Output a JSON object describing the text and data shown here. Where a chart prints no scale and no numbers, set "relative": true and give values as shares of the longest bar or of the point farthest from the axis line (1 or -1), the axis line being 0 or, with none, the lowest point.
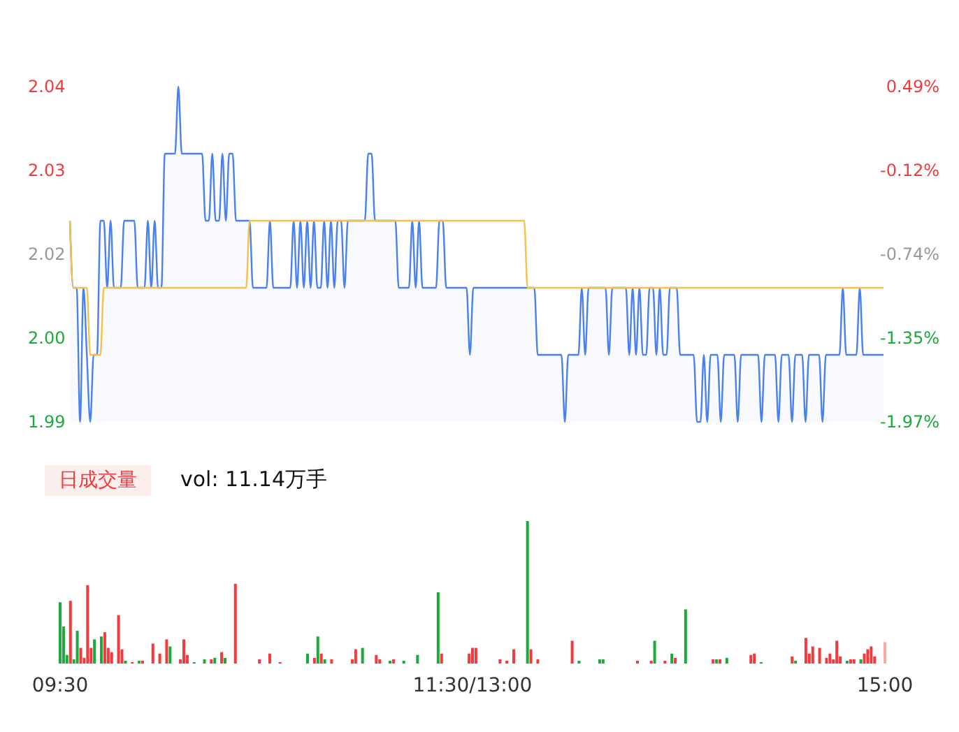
{
  "chart_data": [
    {
      "type": "line",
      "ylim": [
        1.99,
        2.04
      ],
      "categories": [
        null,
        null,
        null,
        null,
        null,
        null,
        null,
        null,
        null,
        null,
        null,
        null,
        null,
        null,
        null,
        null,
        null,
        null,
        null,
        null,
        null,
        null,
        null,
        null,
        null,
        null,
        null,
        null,
        null,
        null,
        null,
        null,
        null,
        null,
        null,
        null,
        null,
        null,
        null,
        null,
        null,
        null,
        null,
        null,
        null,
        null,
        null,
        null,
        null,
        null,
        null,
        null,
        null,
        null,
        null,
        null,
        null,
        null,
        null,
        null,
        null,
        null,
        null,
        null,
        null,
        null,
        null,
        null,
        null,
        null,
        null,
        null,
        null,
        null,
        null,
        null,
        null,
        null,
        null,
        null,
        null,
        null,
        null,
        null,
        null,
        null,
        null,
        null,
        null,
        null,
        null,
        null,
        null,
        null,
        null,
        null,
        null,
        null,
        null,
        null,
        null,
        null,
        null,
        null,
        null,
        null,
        null,
        null,
        null,
        null,
        null,
        null,
        null,
        null,
        null,
        null,
        null,
        null,
        null,
        null,
        null,
        null,
        null,
        null,
        null,
        null,
        null,
        null,
        null,
        null,
        null,
        null,
        null,
        null,
        null,
        null,
        null,
        null,
        null,
        null,
        null,
        null,
        null,
        null,
        null,
        null,
        null,
        null,
        null,
        null,
        null,
        null,
        null,
        null,
        null,
        null,
        null,
        null,
        null,
        null,
        null,
        null,
        null,
        null,
        null,
        null,
        null,
        null,
        null,
        null,
        null,
        null,
        null,
        null,
        null,
        null,
        null,
        null,
        null,
        null,
        null,
        null,
        null,
        null,
        null,
        null,
        null,
        null,
        null,
        null,
        null,
        null,
        null,
        null,
        null,
        null,
        null,
        null,
        null,
        null,
        null,
        null,
        null,
        null,
        null,
        null,
        null,
        null,
        null,
        null,
        null,
        null,
        null,
        null,
        null,
        null,
        null,
        null,
        null,
        null,
        null,
        null,
        null,
        null,
        null,
        null,
        null,
        null,
        null,
        null,
        null,
        null,
        null,
        null,
        null,
        null,
        null,
        null,
        null,
        null,
        null
      ],
      "yticks": [
        1.99,
        {
          "value": 2.0025,
          "label": "2.00"
        },
        {
          "value": 2.015,
          "label": "2.02"
        },
        {
          "value": 2.0275,
          "label": "2.03"
        },
        2.04
      ],
      "y2lim": [
        -1.97,
        0.49
      ],
      "y2ticks": [
        {
          "value": 0.49,
          "label": "0.49%"
        },
        {
          "value": -0.125,
          "label": "-0.12%"
        },
        {
          "value": -0.74,
          "label": "-0.74%"
        },
        {
          "value": -1.355,
          "label": "-1.35%"
        },
        {
          "value": -1.97,
          "label": "-1.97%"
        }
      ],
      "tick_labels": "y",
      "series": [
        {
          "type": "area",
          "color": "#4a80f0",
          "values": [
            2.02,
            2.01,
            2.01,
            1.99,
            2.01,
            2.0,
            1.99,
            2.0,
            2.0,
            2.02,
            2.02,
            2.01,
            2.02,
            2.01,
            2.01,
            2.01,
            2.02,
            2.02,
            2.02,
            2.02,
            2.01,
            2.01,
            2.01,
            2.02,
            2.01,
            2.02,
            2.01,
            2.01,
            2.03,
            2.03,
            2.03,
            2.03,
            2.04,
            2.03,
            2.03,
            2.03,
            2.03,
            2.03,
            2.03,
            2.03,
            2.02,
            2.02,
            2.03,
            2.02,
            2.02,
            2.03,
            2.02,
            2.03,
            2.03,
            2.02,
            2.02,
            2.02,
            2.02,
            2.02,
            2.01,
            2.01,
            2.01,
            2.01,
            2.01,
            2.02,
            2.01,
            2.01,
            2.01,
            2.01,
            2.01,
            2.01,
            2.02,
            2.01,
            2.02,
            2.01,
            2.02,
            2.01,
            2.02,
            2.01,
            2.01,
            2.02,
            2.01,
            2.02,
            2.01,
            2.02,
            2.02,
            2.01,
            2.02,
            2.02,
            2.02,
            2.02,
            2.02,
            2.02,
            2.03,
            2.03,
            2.02,
            2.02,
            2.02,
            2.02,
            2.02,
            2.02,
            2.02,
            2.01,
            2.01,
            2.01,
            2.01,
            2.02,
            2.01,
            2.02,
            2.01,
            2.01,
            2.01,
            2.01,
            2.01,
            2.02,
            2.02,
            2.01,
            2.01,
            2.01,
            2.01,
            2.01,
            2.01,
            2.01,
            2.0,
            2.01,
            2.01,
            2.01,
            2.01,
            2.01,
            2.01,
            2.01,
            2.01,
            2.01,
            2.01,
            2.01,
            2.01,
            2.01,
            2.01,
            2.01,
            2.01,
            2.01,
            2.01,
            2.01,
            2.0,
            2.0,
            2.0,
            2.0,
            2.0,
            2.0,
            2.0,
            2.0,
            1.99,
            2.0,
            2.0,
            2.0,
            2.0,
            2.01,
            2.0,
            2.01,
            2.01,
            2.01,
            2.01,
            2.01,
            2.01,
            2.0,
            2.01,
            2.01,
            2.01,
            2.01,
            2.01,
            2.0,
            2.01,
            2.0,
            2.01,
            2.0,
            2.0,
            2.01,
            2.01,
            2.0,
            2.01,
            2.0,
            2.0,
            2.01,
            2.01,
            2.01,
            2.0,
            2.0,
            2.0,
            2.0,
            2.0,
            1.99,
            1.99,
            2.0,
            1.99,
            2.0,
            2.0,
            2.0,
            1.99,
            2.0,
            2.0,
            2.0,
            2.0,
            1.99,
            2.0,
            2.0,
            2.0,
            2.0,
            2.0,
            2.0,
            1.99,
            2.0,
            2.0,
            2.0,
            2.0,
            1.99,
            2.0,
            2.0,
            2.0,
            1.99,
            2.0,
            2.0,
            2.0,
            1.99,
            2.0,
            2.0,
            2.0,
            2.0,
            1.99,
            2.0,
            2.0,
            2.0,
            2.0,
            2.0,
            2.01,
            2.0,
            2.0,
            2.0,
            2.0,
            2.01,
            2.0,
            2.0,
            2.0,
            2.0,
            2.0,
            2.0,
            2.0
          ]
        },
        {
          "type": "line",
          "color": "#f7c04a",
          "values": [
            2.02,
            2.01,
            2.01,
            2.01,
            2.01,
            2.01,
            2.0,
            2.0,
            2.0,
            2.0,
            2.01,
            2.01,
            2.01,
            2.01,
            2.01,
            2.01,
            2.01,
            2.01,
            2.01,
            2.01,
            2.01,
            2.01,
            2.01,
            2.01,
            2.01,
            2.01,
            2.01,
            2.01,
            2.01,
            2.01,
            2.01,
            2.01,
            2.01,
            2.01,
            2.01,
            2.01,
            2.01,
            2.01,
            2.01,
            2.01,
            2.01,
            2.01,
            2.01,
            2.01,
            2.01,
            2.01,
            2.01,
            2.01,
            2.01,
            2.01,
            2.01,
            2.01,
            2.01,
            2.02,
            2.02,
            2.02,
            2.02,
            2.02,
            2.02,
            2.02,
            2.02,
            2.02,
            2.02,
            2.02,
            2.02,
            2.02,
            2.02,
            2.02,
            2.02,
            2.02,
            2.02,
            2.02,
            2.02,
            2.02,
            2.02,
            2.02,
            2.02,
            2.02,
            2.02,
            2.02,
            2.02,
            2.02,
            2.02,
            2.02,
            2.02,
            2.02,
            2.02,
            2.02,
            2.02,
            2.02,
            2.02,
            2.02,
            2.02,
            2.02,
            2.02,
            2.02,
            2.02,
            2.02,
            2.02,
            2.02,
            2.02,
            2.02,
            2.02,
            2.02,
            2.02,
            2.02,
            2.02,
            2.02,
            2.02,
            2.02,
            2.02,
            2.02,
            2.02,
            2.02,
            2.02,
            2.02,
            2.02,
            2.02,
            2.02,
            2.02,
            2.02,
            2.02,
            2.02,
            2.02,
            2.02,
            2.02,
            2.02,
            2.02,
            2.02,
            2.02,
            2.02,
            2.02,
            2.02,
            2.02,
            2.02,
            2.01,
            2.01,
            2.01,
            2.01,
            2.01,
            2.01,
            2.01,
            2.01,
            2.01,
            2.01,
            2.01,
            2.01,
            2.01,
            2.01,
            2.01,
            2.01,
            2.01,
            2.01,
            2.01,
            2.01,
            2.01,
            2.01,
            2.01,
            2.01,
            2.01,
            2.01,
            2.01,
            2.01,
            2.01,
            2.01,
            2.01,
            2.01,
            2.01,
            2.01,
            2.01,
            2.01,
            2.01,
            2.01,
            2.01,
            2.01,
            2.01,
            2.01,
            2.01,
            2.01,
            2.01,
            2.01,
            2.01,
            2.01,
            2.01,
            2.01,
            2.01,
            2.01,
            2.01,
            2.01,
            2.01,
            2.01,
            2.01,
            2.01,
            2.01,
            2.01,
            2.01,
            2.01,
            2.01,
            2.01,
            2.01,
            2.01,
            2.01,
            2.01,
            2.01,
            2.01,
            2.01,
            2.01,
            2.01,
            2.01,
            2.01,
            2.01,
            2.01,
            2.01,
            2.01,
            2.01,
            2.01,
            2.01,
            2.01,
            2.01,
            2.01,
            2.01,
            2.01,
            2.01,
            2.01,
            2.01,
            2.01,
            2.01,
            2.01,
            2.01,
            2.01,
            2.01,
            2.01,
            2.01,
            2.01,
            2.01,
            2.01,
            2.01,
            2.01,
            2.01,
            2.01,
            2.01
          ]
        }
      ]
    },
    {
      "type": "bar",
      "relative": true,
      "categories": [
        "09:30",
        null,
        null,
        null,
        null,
        null,
        null,
        null,
        null,
        null,
        null,
        null,
        null,
        null,
        null,
        null,
        null,
        null,
        null,
        null,
        null,
        null,
        null,
        null,
        null,
        null,
        null,
        null,
        null,
        null,
        null,
        null,
        null,
        null,
        null,
        null,
        null,
        null,
        null,
        null,
        null,
        null,
        null,
        null,
        null,
        null,
        null,
        null,
        null,
        null,
        null,
        null,
        null,
        null,
        null,
        null,
        null,
        null,
        null,
        null,
        null,
        null,
        null,
        null,
        null,
        null,
        null,
        null,
        null,
        null,
        null,
        null,
        null,
        null,
        null,
        null,
        null,
        null,
        null,
        null,
        null,
        null,
        null,
        null,
        null,
        null,
        null,
        null,
        null,
        null,
        null,
        null,
        null,
        null,
        null,
        null,
        null,
        null,
        null,
        null,
        null,
        null,
        null,
        null,
        null,
        null,
        null,
        null,
        null,
        null,
        null,
        null,
        null,
        null,
        null,
        null,
        null,
        null,
        null,
        null,
        "11:30/13:00",
        null,
        null,
        null,
        null,
        null,
        null,
        null,
        null,
        null,
        null,
        null,
        null,
        null,
        null,
        null,
        null,
        null,
        null,
        null,
        null,
        null,
        null,
        null,
        null,
        null,
        null,
        null,
        null,
        null,
        null,
        null,
        null,
        null,
        null,
        null,
        null,
        null,
        null,
        null,
        null,
        null,
        null,
        null,
        null,
        null,
        null,
        null,
        null,
        null,
        null,
        null,
        null,
        null,
        null,
        null,
        null,
        null,
        null,
        null,
        null,
        null,
        null,
        null,
        null,
        null,
        null,
        null,
        null,
        null,
        null,
        null,
        null,
        null,
        null,
        null,
        null,
        null,
        null,
        null,
        null,
        null,
        null,
        null,
        null,
        null,
        null,
        null,
        null,
        null,
        null,
        null,
        null,
        null,
        null,
        null,
        null,
        null,
        null,
        null,
        null,
        null,
        null,
        null,
        null,
        null,
        null,
        null,
        null,
        null,
        null,
        null,
        null,
        null,
        null,
        null,
        null,
        null,
        null,
        null,
        "15:00"
      ],
      "tick_labels": "x",
      "annotations": [
        "日成交量",
        "vol: 11.14万手"
      ],
      "values": [
        0.43,
        0.26,
        0.06,
        0.44,
        0.03,
        0.23,
        0.11,
        0.04,
        0.55,
        0.11,
        0.17,
        null,
        0.19,
        0.22,
        0.11,
        0.08,
        null,
        0.34,
        0.1,
        0.02,
        null,
        0.01,
        null,
        0.02,
        0.02,
        null,
        null,
        0.14,
        null,
        0.07,
        null,
        0.17,
        0.12,
        null,
        null,
        0.03,
        0.17,
        0.06,
        null,
        0.01,
        null,
        null,
        0.03,
        null,
        0.03,
        0.04,
        null,
        0.08,
        0.04,
        null,
        null,
        0.56,
        null,
        null,
        null,
        null,
        null,
        null,
        0.03,
        null,
        null,
        0.07,
        null,
        null,
        0.01,
        null,
        null,
        null,
        null,
        null,
        null,
        null,
        0.07,
        null,
        0.04,
        0.19,
        0.07,
        0.03,
        null,
        0.03,
        null,
        null,
        null,
        null,
        null,
        0.03,
        0.1,
        null,
        0.11,
        null,
        null,
        null,
        0.06,
        0.03,
        null,
        null,
        0.02,
        0.03,
        null,
        null,
        0.02,
        null,
        null,
        null,
        0.06,
        null,
        null,
        null,
        null,
        null,
        0.5,
        0.07,
        null,
        null,
        null,
        null,
        null,
        null,
        null,
        0.07,
        0.11,
        0.11,
        null,
        null,
        null,
        null,
        null,
        null,
        0.03,
        null,
        0.02,
        null,
        0.1,
        null,
        null,
        null,
        1,
        0.1,
        null,
        0.03,
        null,
        null,
        null,
        null,
        null,
        null,
        null,
        null,
        null,
        0.16,
        null,
        0.02,
        null,
        null,
        null,
        null,
        null,
        0.03,
        0.03,
        null,
        null,
        null,
        null,
        null,
        null,
        null,
        null,
        null,
        0.02,
        null,
        null,
        null,
        0.02,
        0.16,
        null,
        null,
        0.02,
        null,
        0.07,
        0.04,
        null,
        null,
        0.38,
        null,
        null,
        null,
        null,
        null,
        null,
        null,
        0.03,
        0.03,
        0.03,
        null,
        0.04,
        null,
        null,
        null,
        null,
        null,
        null,
        0.06,
        0.07,
        null,
        0.01,
        null,
        null,
        null,
        null,
        null,
        null,
        null,
        null,
        0.05,
        0.02,
        null,
        null,
        0.18,
        0.07,
        0.12,
        null,
        0.11,
        null,
        0.04,
        0.07,
        0.03,
        0.16,
        0.05,
        null,
        0.02,
        0.03,
        0.03,
        null,
        0.03,
        0.07,
        0.1,
        0.12,
        0.05,
        null,
        null,
        0.15
      ],
      "colors": [
        "#1aab3c",
        "#1aab3c",
        "#1aab3c",
        "#f5393c",
        "#1aab3c",
        "#1aab3c",
        "#f5393c",
        "#f5393c",
        "#f5393c",
        "#f5393c",
        "#1aab3c",
        null,
        "#1aab3c",
        "#f5393c",
        "#f5393c",
        "#f5393c",
        null,
        "#f5393c",
        "#f5393c",
        "#1aab3c",
        null,
        "#f5393c",
        null,
        "#1aab3c",
        "#f5393c",
        null,
        null,
        "#f5393c",
        null,
        "#f5393c",
        null,
        "#f5393c",
        "#1aab3c",
        null,
        null,
        "#f5393c",
        "#f5393c",
        "#f5393c",
        null,
        "#1aab3c",
        null,
        null,
        "#1aab3c",
        null,
        "#f5393c",
        "#1aab3c",
        null,
        "#f5393c",
        "#1aab3c",
        null,
        null,
        "#f5393c",
        null,
        null,
        null,
        null,
        null,
        null,
        "#f5393c",
        null,
        null,
        "#f5393c",
        null,
        null,
        "#f5393c",
        null,
        null,
        null,
        null,
        null,
        null,
        null,
        "#1aab3c",
        null,
        "#f5393c",
        "#1aab3c",
        "#f5393c",
        "#1aab3c",
        null,
        "#f5393c",
        null,
        null,
        null,
        null,
        null,
        "#f5393c",
        "#f5393c",
        null,
        "#1aab3c",
        null,
        null,
        null,
        "#f5393c",
        "#f5393c",
        null,
        null,
        "#1aab3c",
        "#f5393c",
        null,
        null,
        "#1aab3c",
        null,
        null,
        null,
        "#1aab3c",
        null,
        null,
        null,
        null,
        null,
        "#1aab3c",
        "#f5393c",
        null,
        null,
        null,
        null,
        null,
        null,
        null,
        "#f5393c",
        "#f5393c",
        "#f5393c",
        null,
        null,
        null,
        null,
        null,
        null,
        "#f5393c",
        null,
        "#f5393c",
        null,
        "#f5393c",
        null,
        null,
        null,
        "#1aab3c",
        "#f5393c",
        null,
        "#f5393c",
        null,
        null,
        null,
        null,
        null,
        null,
        null,
        null,
        null,
        "#f5393c",
        null,
        "#1aab3c",
        null,
        null,
        null,
        null,
        null,
        "#1aab3c",
        "#1aab3c",
        null,
        null,
        null,
        null,
        null,
        null,
        null,
        null,
        null,
        "#f5393c",
        null,
        null,
        null,
        "#f5393c",
        "#1aab3c",
        null,
        null,
        "#f5393c",
        null,
        "#1aab3c",
        "#f5393c",
        null,
        null,
        "#1aab3c",
        null,
        null,
        null,
        null,
        null,
        null,
        null,
        "#f5393c",
        "#1aab3c",
        "#f5393c",
        null,
        "#1aab3c",
        null,
        null,
        null,
        null,
        null,
        null,
        "#f5393c",
        "#f5393c",
        null,
        "#1aab3c",
        null,
        null,
        null,
        null,
        null,
        null,
        null,
        null,
        "#f5393c",
        "#1aab3c",
        null,
        null,
        "#f5393c",
        "#f5393c",
        "#f5393c",
        null,
        "#f5393c",
        null,
        "#f5393c",
        "#f5393c",
        "#f5393c",
        "#f5393c",
        "#f5393c",
        null,
        "#1aab3c",
        "#f5393c",
        "#f5393c",
        null,
        "#1aab3c",
        "#f5393c",
        "#f5393c",
        "#f5393c",
        "#f5393c",
        null,
        null,
        "#ffa6a6"
      ]
    }
  ]
}
